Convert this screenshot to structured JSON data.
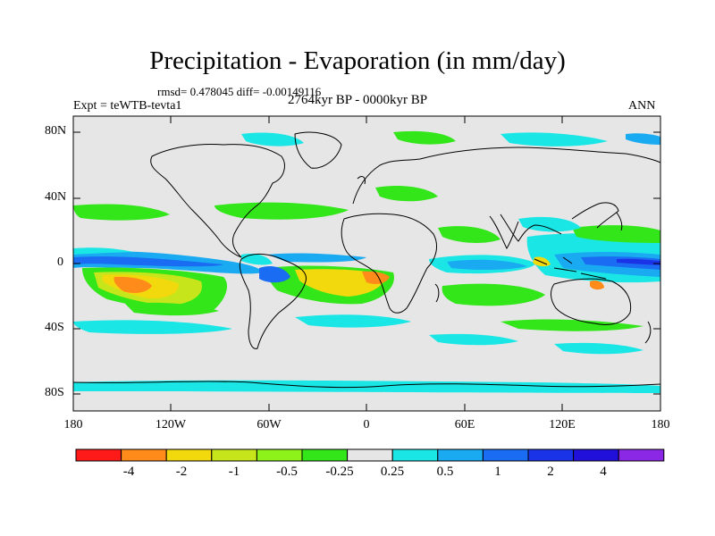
{
  "header": {
    "title": "Precipitation - Evaporation (in mm/day)",
    "stats": "rmsd= 0.478045 diff= -0.00149116",
    "experiment": "Expt = teWTB-tevta1",
    "period": "2764kyr BP - 0000kyr BP",
    "season": "ANN"
  },
  "axes": {
    "y_ticks": [
      "80N",
      "40N",
      "0",
      "40S",
      "80S"
    ],
    "x_ticks": [
      "180",
      "120W",
      "60W",
      "0",
      "60E",
      "120E",
      "180"
    ]
  },
  "colorbar": {
    "colors": [
      "#ff1a1a",
      "#ff8c1a",
      "#f2d90d",
      "#c6e51a",
      "#8cf21a",
      "#33e61a",
      "#e6e6e6",
      "#1ae6e6",
      "#1aaaf2",
      "#1a6cf2",
      "#1a33e6",
      "#2010d9",
      "#8a28e6"
    ],
    "labels": [
      "-4",
      "-2",
      "-1",
      "-0.5",
      "-0.25",
      "0.25",
      "0.5",
      "1",
      "2",
      "4"
    ]
  },
  "map": {
    "ocean_color": "#e6e6e6",
    "coast_color": "#000000"
  }
}
